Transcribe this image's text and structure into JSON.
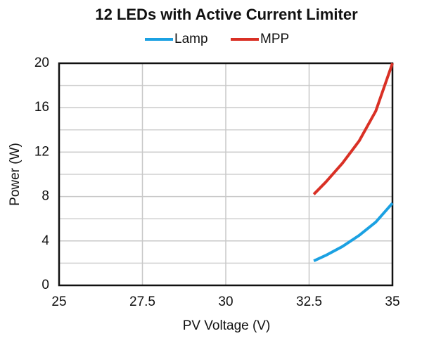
{
  "chart_data": {
    "type": "line",
    "title": "12 LEDs with Active Current Limiter",
    "xlabel": "PV Voltage (V)",
    "ylabel": "Power (W)",
    "x": [
      32.64,
      33,
      33.5,
      34,
      34.5,
      35
    ],
    "series": [
      {
        "name": "Lamp",
        "color": "#1ba1e2",
        "values": [
          2.2,
          2.7,
          3.5,
          4.5,
          5.7,
          7.4
        ]
      },
      {
        "name": "MPP",
        "color": "#d93025",
        "values": [
          8.2,
          9.3,
          11.0,
          13.0,
          15.7,
          20.0
        ]
      }
    ],
    "xlim": [
      25,
      35
    ],
    "xticks": [
      25,
      27.5,
      30,
      32.5,
      35
    ],
    "ylim": [
      0,
      20
    ],
    "yticks": [
      0,
      4,
      8,
      12,
      16,
      20
    ],
    "yminor": [
      2,
      6,
      10,
      14,
      18
    ],
    "grid": true,
    "legend": "top"
  }
}
